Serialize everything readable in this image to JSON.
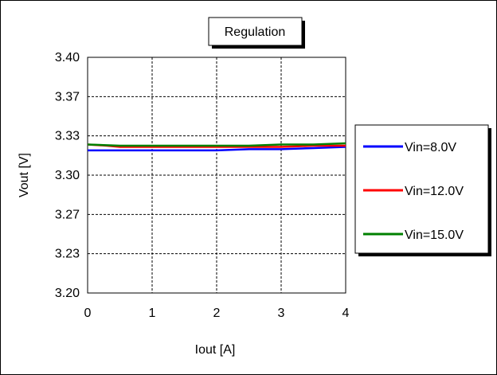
{
  "chart_data": {
    "type": "line",
    "title": "Regulation",
    "xlabel": "Iout [A]",
    "ylabel": "Vout [V]",
    "xlim": [
      0,
      4
    ],
    "ylim": [
      3.2,
      3.4
    ],
    "x_ticks": [
      "0",
      "1",
      "2",
      "3",
      "4"
    ],
    "y_ticks": [
      "3.40",
      "3.37",
      "3.33",
      "3.30",
      "3.27",
      "3.23",
      "3.20"
    ],
    "grid": true,
    "legend_position": "right",
    "series": [
      {
        "name": "Vin=8.0V",
        "color": "#0000ff",
        "x": [
          0,
          0.5,
          1,
          1.5,
          2,
          2.5,
          3,
          3.5,
          4
        ],
        "y": [
          3.321,
          3.321,
          3.321,
          3.321,
          3.321,
          3.322,
          3.322,
          3.323,
          3.324
        ]
      },
      {
        "name": "Vin=12.0V",
        "color": "#ff0000",
        "x": [
          0,
          0.3,
          0.5,
          1,
          1.5,
          2,
          2.5,
          3,
          3.5,
          4
        ],
        "y": [
          3.326,
          3.325,
          3.324,
          3.324,
          3.324,
          3.324,
          3.324,
          3.324,
          3.325,
          3.325
        ]
      },
      {
        "name": "Vin=15.0V",
        "color": "#008000",
        "x": [
          0,
          0.5,
          1,
          1.5,
          2,
          2.5,
          3,
          3.5,
          4
        ],
        "y": [
          3.326,
          3.325,
          3.325,
          3.325,
          3.325,
          3.325,
          3.326,
          3.326,
          3.327
        ]
      }
    ]
  }
}
